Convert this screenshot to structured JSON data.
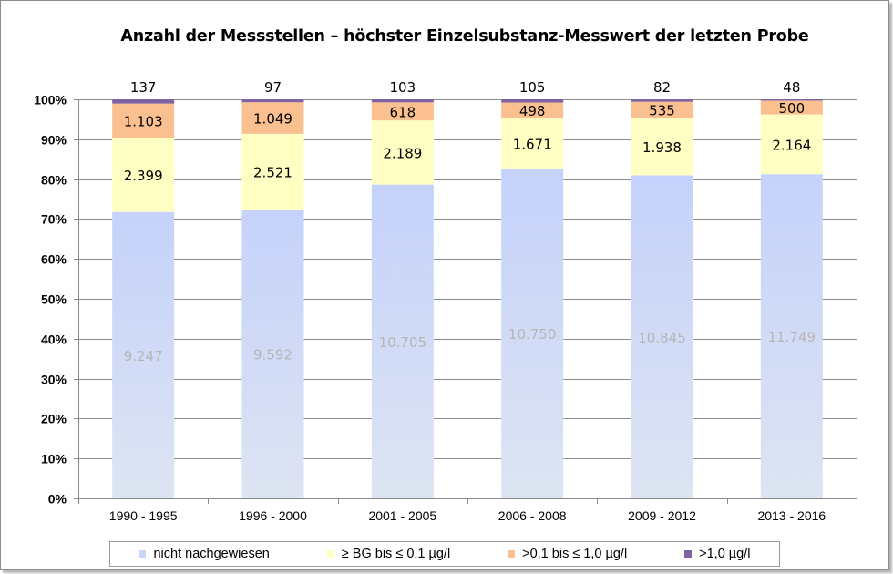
{
  "chart_data": {
    "type": "bar",
    "stacked": true,
    "normalized": true,
    "title": "Anzahl der Messstellen – höchster Einzelsubstanz-Messwert der letzten Probe",
    "xlabel": "",
    "ylabel": "",
    "ylim": [
      0,
      100
    ],
    "yticks": [
      "0%",
      "10%",
      "20%",
      "30%",
      "40%",
      "50%",
      "60%",
      "70%",
      "80%",
      "90%",
      "100%"
    ],
    "grid": true,
    "legend_position": "bottom",
    "categories": [
      "1990 - 1995",
      "1996 - 2000",
      "2001 - 2005",
      "2006 - 2008",
      "2009 - 2012",
      "2013 - 2016"
    ],
    "series": [
      {
        "name": "nicht nachgewiesen",
        "color": "#c9d6fb",
        "values": [
          9247,
          9592,
          10705,
          10750,
          10845,
          11749
        ],
        "labels": [
          "9.247",
          "9.592",
          "10.705",
          "10.750",
          "10.845",
          "11.749"
        ]
      },
      {
        "name": "≥ BG bis ≤ 0,1 µg/l",
        "color": "#ffffc4",
        "values": [
          2399,
          2521,
          2189,
          1671,
          1938,
          2164
        ],
        "labels": [
          "2.399",
          "2.521",
          "2.189",
          "1.671",
          "1.938",
          "2.164"
        ]
      },
      {
        "name": ">0,1 bis ≤ 1,0 µg/l",
        "color": "#fac090",
        "values": [
          1103,
          1049,
          618,
          498,
          535,
          500
        ],
        "labels": [
          "1.103",
          "1.049",
          "618",
          "498",
          "535",
          "500"
        ]
      },
      {
        "name": ">1,0 µg/l",
        "color": "#8064a2",
        "values": [
          137,
          97,
          103,
          105,
          82,
          48
        ],
        "labels": [
          "137",
          "97",
          "103",
          "105",
          "82",
          "48"
        ]
      }
    ]
  }
}
